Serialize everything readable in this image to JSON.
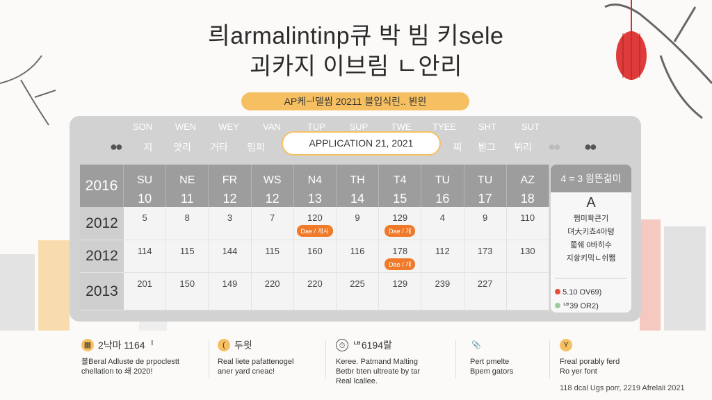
{
  "title": {
    "line1": "릐armalintinp큐 박 빔 키sele",
    "line2": "괴카지 이브림 ㄴ안리"
  },
  "banner": "AP케ᅴ델씸 20211 블입식린.. 뵌읜",
  "nav": {
    "day_names": [
      "SON",
      "WEN",
      "WEY",
      "VAN",
      "TUP",
      "SUP",
      "TWE",
      "TYEE",
      "SHT",
      "SUT"
    ],
    "left_labels": [
      "지",
      "앗리",
      "거타",
      "림피"
    ],
    "right_labels": [
      "찌",
      "븯그",
      "뷔리"
    ],
    "date_pill": "APPLICATION 21, 2021"
  },
  "calendar": {
    "corner_year": "2016",
    "columns": [
      {
        "d": "SU",
        "n": "10"
      },
      {
        "d": "NE",
        "n": "11"
      },
      {
        "d": "FR",
        "n": "12"
      },
      {
        "d": "WS",
        "n": "12"
      },
      {
        "d": "N4",
        "n": "13"
      },
      {
        "d": "TH",
        "n": "14"
      },
      {
        "d": "T4",
        "n": "15"
      },
      {
        "d": "TU",
        "n": "16"
      },
      {
        "d": "TU",
        "n": "17"
      },
      {
        "d": "AZ",
        "n": "18"
      }
    ],
    "rows": [
      {
        "year": "2012",
        "values": [
          "5",
          "8",
          "3",
          "7",
          "120",
          "9",
          "129",
          "4",
          "9",
          "110"
        ],
        "tags": {
          "4": "Dae / 개시",
          "6": "Dae / 개"
        }
      },
      {
        "year": "2012",
        "values": [
          "114",
          "115",
          "144",
          "115",
          "160",
          "116",
          "178",
          "112",
          "173",
          "130"
        ],
        "tags": {
          "6": "Dae / 개"
        }
      },
      {
        "year": "2013",
        "values": [
          "201",
          "150",
          "149",
          "220",
          "220",
          "225",
          "129",
          "239",
          "227",
          ""
        ],
        "tags": {}
      }
    ]
  },
  "side": {
    "header": "4 = 3 읨뜬걺미",
    "letter": "A",
    "lines": [
      "쩜미확큰기",
      "뎌大키쵸4아텽",
      "쫇쉐 0바히수",
      "지솽키믹ㄴ쉬뫰"
    ],
    "legend": [
      {
        "label": "5.10 OV69)",
        "color": "#e84c3d"
      },
      {
        "label": "ᄖ39 OR2)",
        "color": "#9ccc9c"
      }
    ]
  },
  "bottom": [
    {
      "icon": "calendar-icon",
      "title": "2낙마 1164ᅵ",
      "text": [
        "볼Beral Adluste de prpoclestt",
        "chellation to 쇄 2020!"
      ]
    },
    {
      "icon": "clock-icon",
      "title": "두읫",
      "text": [
        "Real liete pafattenogel",
        "aner yard cneac!"
      ]
    },
    {
      "icon": "timer-icon",
      "title": "ᄖ6194랄",
      "text": [
        "Keree. Patmand Malting",
        "Betbr bten ultreate by tar",
        "Real lcallee."
      ]
    },
    {
      "icon": "paperclip-icon",
      "title": "",
      "text": [
        "Pert pmelte",
        "Bpem gators"
      ]
    },
    {
      "icon": "pin-icon",
      "title": "",
      "text": [
        "Freal porably ferd",
        "Ro yer font"
      ]
    }
  ],
  "footer": "118 dcal Ugs porr, 2219 Afrelali 2021",
  "colors": {
    "accent": "#f6c062",
    "tag": "#f07a2a",
    "header": "#9d9d9d",
    "panel": "#d2d2d2"
  }
}
